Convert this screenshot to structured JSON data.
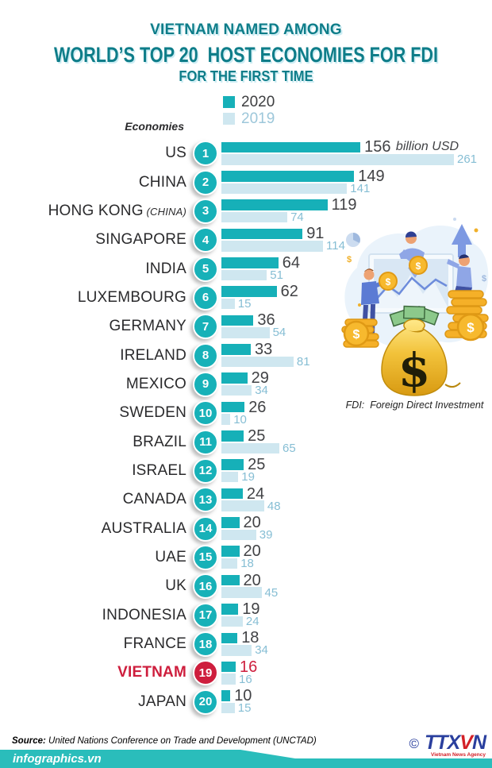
{
  "title": {
    "line1": "VIETNAM NAMED AMONG",
    "line2": "WORLD’S TOP 20  HOST ECONOMIES FOR FDI",
    "line3": "FOR THE FIRST TIME"
  },
  "legend": {
    "items": [
      {
        "label": "2020",
        "color": "#16b0b8"
      },
      {
        "label": "2019",
        "color": "#cfe7f0"
      }
    ]
  },
  "axis": {
    "economies_label": "Economies"
  },
  "note": {
    "fdi": "FDI:  Foreign Direct Investment"
  },
  "chart_data": {
    "type": "bar",
    "orientation": "horizontal",
    "title": "VIETNAM NAMED AMONG WORLD’S TOP 20 HOST ECONOMIES FOR FDI FOR THE FIRST TIME",
    "unit": "billion USD",
    "categories": [
      "US",
      "CHINA",
      "HONG KONG (CHINA)",
      "SINGAPORE",
      "INDIA",
      "LUXEMBOURG",
      "GERMANY",
      "IRELAND",
      "MEXICO",
      "SWEDEN",
      "BRAZIL",
      "ISRAEL",
      "CANADA",
      "AUSTRALIA",
      "UAE",
      "UK",
      "INDONESIA",
      "FRANCE",
      "VIETNAM",
      "JAPAN"
    ],
    "ranks": [
      1,
      2,
      3,
      4,
      5,
      6,
      7,
      8,
      9,
      10,
      11,
      12,
      13,
      14,
      15,
      16,
      17,
      18,
      19,
      20
    ],
    "series": [
      {
        "name": "2020",
        "color": "#16b0b8",
        "values": [
          156,
          149,
          119,
          91,
          64,
          62,
          36,
          33,
          29,
          26,
          25,
          25,
          24,
          20,
          20,
          20,
          19,
          18,
          16,
          10
        ]
      },
      {
        "name": "2019",
        "color": "#cfe7f0",
        "values": [
          261,
          141,
          74,
          114,
          51,
          15,
          54,
          81,
          34,
          10,
          65,
          19,
          48,
          39,
          18,
          45,
          24,
          34,
          16,
          15
        ]
      }
    ],
    "xlim": [
      0,
      261
    ],
    "legend_position": "top",
    "grid": false,
    "highlight_category": "VIETNAM"
  },
  "rows": [
    {
      "rank": 1,
      "name": "US",
      "name_suffix": "",
      "v2020": 156,
      "v2019": 261,
      "unit": "billion USD",
      "highlight": false
    },
    {
      "rank": 2,
      "name": "CHINA",
      "name_suffix": "",
      "v2020": 149,
      "v2019": 141,
      "unit": "",
      "highlight": false
    },
    {
      "rank": 3,
      "name": "HONG KONG",
      "name_suffix": "(CHINA)",
      "v2020": 119,
      "v2019": 74,
      "unit": "",
      "highlight": false
    },
    {
      "rank": 4,
      "name": "SINGAPORE",
      "name_suffix": "",
      "v2020": 91,
      "v2019": 114,
      "unit": "",
      "highlight": false
    },
    {
      "rank": 5,
      "name": "INDIA",
      "name_suffix": "",
      "v2020": 64,
      "v2019": 51,
      "unit": "",
      "highlight": false
    },
    {
      "rank": 6,
      "name": "LUXEMBOURG",
      "name_suffix": "",
      "v2020": 62,
      "v2019": 15,
      "unit": "",
      "highlight": false
    },
    {
      "rank": 7,
      "name": "GERMANY",
      "name_suffix": "",
      "v2020": 36,
      "v2019": 54,
      "unit": "",
      "highlight": false
    },
    {
      "rank": 8,
      "name": "IRELAND",
      "name_suffix": "",
      "v2020": 33,
      "v2019": 81,
      "unit": "",
      "highlight": false
    },
    {
      "rank": 9,
      "name": "MEXICO",
      "name_suffix": "",
      "v2020": 29,
      "v2019": 34,
      "unit": "",
      "highlight": false
    },
    {
      "rank": 10,
      "name": "SWEDEN",
      "name_suffix": "",
      "v2020": 26,
      "v2019": 10,
      "unit": "",
      "highlight": false
    },
    {
      "rank": 11,
      "name": "BRAZIL",
      "name_suffix": "",
      "v2020": 25,
      "v2019": 65,
      "unit": "",
      "highlight": false
    },
    {
      "rank": 12,
      "name": "ISRAEL",
      "name_suffix": "",
      "v2020": 25,
      "v2019": 19,
      "unit": "",
      "highlight": false
    },
    {
      "rank": 13,
      "name": "CANADA",
      "name_suffix": "",
      "v2020": 24,
      "v2019": 48,
      "unit": "",
      "highlight": false
    },
    {
      "rank": 14,
      "name": "AUSTRALIA",
      "name_suffix": "",
      "v2020": 20,
      "v2019": 39,
      "unit": "",
      "highlight": false
    },
    {
      "rank": 15,
      "name": "UAE",
      "name_suffix": "",
      "v2020": 20,
      "v2019": 18,
      "unit": "",
      "highlight": false
    },
    {
      "rank": 16,
      "name": "UK",
      "name_suffix": "",
      "v2020": 20,
      "v2019": 45,
      "unit": "",
      "highlight": false
    },
    {
      "rank": 17,
      "name": "INDONESIA",
      "name_suffix": "",
      "v2020": 19,
      "v2019": 24,
      "unit": "",
      "highlight": false
    },
    {
      "rank": 18,
      "name": "FRANCE",
      "name_suffix": "",
      "v2020": 18,
      "v2019": 34,
      "unit": "",
      "highlight": false
    },
    {
      "rank": 19,
      "name": "VIETNAM",
      "name_suffix": "",
      "v2020": 16,
      "v2019": 16,
      "unit": "",
      "highlight": true
    },
    {
      "rank": 20,
      "name": "JAPAN",
      "name_suffix": "",
      "v2020": 10,
      "v2019": 15,
      "unit": "",
      "highlight": false
    }
  ],
  "footer": {
    "source_label": "Source:",
    "source_text": " United Nations Conference on Trade and Development (UNCTAD)",
    "site": "infographics.vn",
    "copyright": "©",
    "agency_abbr_1": "TTX",
    "agency_abbr_2": "V",
    "agency_abbr_3": "N",
    "agency_name": "Vietnam News Agency"
  },
  "illustration": {
    "dollar_symbol": "$"
  },
  "colors": {
    "bar_2020": "#16b0b8",
    "bar_2019": "#cfe7f0",
    "value_2019_text": "#86bed4",
    "title_teal": "#0e7d89",
    "highlight_red": "#ce1e3d",
    "banner_teal": "#2abdbb",
    "agency_blue": "#2a3f9e",
    "agency_red": "#d32027",
    "badge_teal": "#17b1b8"
  }
}
